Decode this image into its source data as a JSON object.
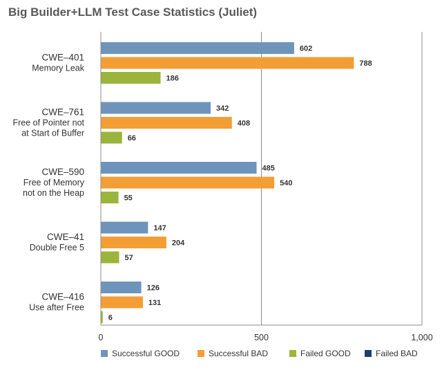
{
  "chart_data": {
    "type": "bar",
    "orientation": "horizontal",
    "title": "Big Builder+LLM Test Case Statistics (Juliet)",
    "categories": [
      {
        "code": "CWE–401",
        "lines": [
          "Memory Leak"
        ]
      },
      {
        "code": "CWE–761",
        "lines": [
          "Free of Pointer not",
          "at Start of Buffer"
        ]
      },
      {
        "code": "CWE–590",
        "lines": [
          "Free of Memory",
          "not on the Heap"
        ]
      },
      {
        "code": "CWE–41",
        "lines": [
          "Double Free 5"
        ]
      },
      {
        "code": "CWE–416",
        "lines": [
          "Use after Free"
        ]
      }
    ],
    "series": [
      {
        "name": "Successful GOOD",
        "color": "#6f94bb",
        "values": [
          602,
          342,
          485,
          147,
          126
        ]
      },
      {
        "name": "Successful BAD",
        "color": "#f39e35",
        "values": [
          788,
          408,
          540,
          204,
          131
        ]
      },
      {
        "name": "Failed GOOD",
        "color": "#9bb43c",
        "values": [
          186,
          66,
          55,
          57,
          6
        ]
      },
      {
        "name": "Failed BAD",
        "color": "#1d3c6e",
        "values": [
          0,
          0,
          0,
          0,
          0
        ]
      }
    ],
    "xlim": [
      0,
      1000
    ],
    "xticks": [
      0,
      500,
      1000
    ],
    "xtick_labels": [
      "0",
      "500",
      "1,000"
    ],
    "grid": true,
    "legend_position": "bottom"
  }
}
